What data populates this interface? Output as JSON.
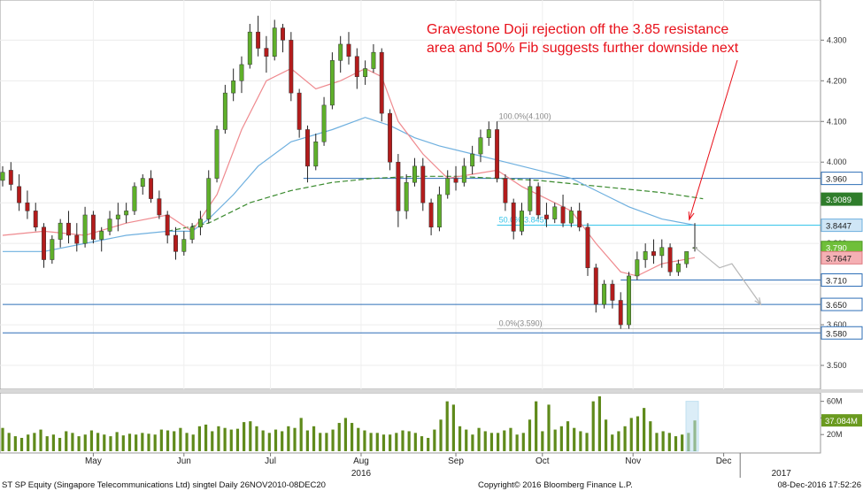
{
  "chart_data": {
    "type": "candlestick",
    "title": "",
    "annotation": [
      "Gravestone Doji rejection off the 3.85 resistance",
      "area and 50% Fib suggests further downside next"
    ],
    "y_axis": {
      "range": [
        3.45,
        4.39
      ],
      "ticks": [
        "3.500",
        "3.600",
        "3.700",
        "3.800",
        "3.900",
        "4.000",
        "4.100",
        "4.200",
        "4.300"
      ]
    },
    "volume_axis": {
      "range": [
        0,
        66
      ],
      "ticks": [
        "20M",
        "40M",
        "60M"
      ],
      "last_label": "37.084M"
    },
    "x_axis": {
      "months": [
        {
          "label": "May",
          "day": 22
        },
        {
          "label": "Jun",
          "day": 44
        },
        {
          "label": "Jul",
          "day": 65
        },
        {
          "label": "Aug",
          "day": 87
        },
        {
          "label": "Sep",
          "day": 110
        },
        {
          "label": "Oct",
          "day": 131
        },
        {
          "label": "Nov",
          "day": 153
        },
        {
          "label": "Dec",
          "day": 175
        }
      ],
      "years": [
        {
          "label": "2016",
          "day": 87
        },
        {
          "label": "2017",
          "day": 189
        }
      ],
      "total_days": 197
    },
    "horizontal_levels": [
      {
        "value": 3.96,
        "label": "3.960",
        "from_day": 73
      },
      {
        "value": 3.71,
        "label": "3.710",
        "from_day": 150
      },
      {
        "value": 3.65,
        "label": "3.650",
        "from_day": 0
      },
      {
        "value": 3.58,
        "label": "3.580",
        "from_day": 0
      }
    ],
    "fib_levels": [
      {
        "label": "100.0%(4.100)",
        "value": 4.1,
        "from_day": 120
      },
      {
        "label": "50.0%(3.845)",
        "value": 3.845,
        "from_day": 120
      },
      {
        "label": "0.0%(3.590)",
        "value": 3.59,
        "from_day": 120
      }
    ],
    "badges": [
      {
        "value": 3.96,
        "label": "3.960",
        "style": "level"
      },
      {
        "value": 3.9089,
        "label": "3.9089",
        "style": "ma200"
      },
      {
        "value": 3.8447,
        "label": "3.8447",
        "style": "ma50"
      },
      {
        "value": 3.79,
        "label": "3.790",
        "style": "last"
      },
      {
        "value": 3.7647,
        "label": "3.7647",
        "style": "ma20"
      },
      {
        "value": 3.71,
        "label": "3.710",
        "style": "level"
      },
      {
        "value": 3.65,
        "label": "3.650",
        "style": "level"
      },
      {
        "value": 3.58,
        "label": "3.580",
        "style": "level"
      }
    ],
    "colors": {
      "up": "#5fb02a",
      "down": "#b31c1c",
      "wick": "#222222",
      "ma20": "#ef8a8f",
      "ma50": "#6fb0df",
      "ma200": "#3a8a2e",
      "level": "#2f6fb7",
      "fib": "#bfbfbf",
      "fib50": "#38c5ea",
      "volume": "#5f8a1b",
      "annotation": "#e8101a",
      "projection": "#b8b8b8"
    },
    "series": [
      {
        "day": 0,
        "open": 3.955,
        "high": 3.99,
        "low": 3.94,
        "close": 3.975
      },
      {
        "day": 2,
        "open": 3.98,
        "high": 4.0,
        "low": 3.93,
        "close": 3.945
      },
      {
        "day": 4,
        "open": 3.94,
        "high": 3.97,
        "low": 3.88,
        "close": 3.9
      },
      {
        "day": 6,
        "open": 3.9,
        "high": 3.93,
        "low": 3.86,
        "close": 3.88
      },
      {
        "day": 8,
        "open": 3.88,
        "high": 3.9,
        "low": 3.83,
        "close": 3.84
      },
      {
        "day": 10,
        "open": 3.84,
        "high": 3.85,
        "low": 3.74,
        "close": 3.76
      },
      {
        "day": 12,
        "open": 3.76,
        "high": 3.82,
        "low": 3.75,
        "close": 3.81
      },
      {
        "day": 14,
        "open": 3.81,
        "high": 3.86,
        "low": 3.79,
        "close": 3.85
      },
      {
        "day": 16,
        "open": 3.85,
        "high": 3.88,
        "low": 3.8,
        "close": 3.82
      },
      {
        "day": 18,
        "open": 3.82,
        "high": 3.85,
        "low": 3.78,
        "close": 3.8
      },
      {
        "day": 20,
        "open": 3.8,
        "high": 3.89,
        "low": 3.79,
        "close": 3.87
      },
      {
        "day": 22,
        "open": 3.87,
        "high": 3.88,
        "low": 3.8,
        "close": 3.81
      },
      {
        "day": 24,
        "open": 3.81,
        "high": 3.84,
        "low": 3.78,
        "close": 3.83
      },
      {
        "day": 26,
        "open": 3.83,
        "high": 3.88,
        "low": 3.82,
        "close": 3.86
      },
      {
        "day": 28,
        "open": 3.86,
        "high": 3.9,
        "low": 3.83,
        "close": 3.87
      },
      {
        "day": 30,
        "open": 3.87,
        "high": 3.9,
        "low": 3.85,
        "close": 3.88
      },
      {
        "day": 32,
        "open": 3.88,
        "high": 3.95,
        "low": 3.87,
        "close": 3.94
      },
      {
        "day": 34,
        "open": 3.94,
        "high": 3.97,
        "low": 3.92,
        "close": 3.96
      },
      {
        "day": 36,
        "open": 3.96,
        "high": 3.98,
        "low": 3.9,
        "close": 3.91
      },
      {
        "day": 38,
        "open": 3.91,
        "high": 3.93,
        "low": 3.86,
        "close": 3.87
      },
      {
        "day": 40,
        "open": 3.87,
        "high": 3.88,
        "low": 3.8,
        "close": 3.82
      },
      {
        "day": 42,
        "open": 3.82,
        "high": 3.84,
        "low": 3.76,
        "close": 3.78
      },
      {
        "day": 44,
        "open": 3.78,
        "high": 3.83,
        "low": 3.77,
        "close": 3.81
      },
      {
        "day": 46,
        "open": 3.81,
        "high": 3.85,
        "low": 3.8,
        "close": 3.84
      },
      {
        "day": 48,
        "open": 3.84,
        "high": 3.88,
        "low": 3.82,
        "close": 3.86
      },
      {
        "day": 50,
        "open": 3.86,
        "high": 3.98,
        "low": 3.85,
        "close": 3.96
      },
      {
        "day": 52,
        "open": 3.96,
        "high": 4.09,
        "low": 3.95,
        "close": 4.08
      },
      {
        "day": 54,
        "open": 4.08,
        "high": 4.19,
        "low": 4.07,
        "close": 4.17
      },
      {
        "day": 56,
        "open": 4.17,
        "high": 4.23,
        "low": 4.15,
        "close": 4.2
      },
      {
        "day": 58,
        "open": 4.2,
        "high": 4.26,
        "low": 4.17,
        "close": 4.24
      },
      {
        "day": 60,
        "open": 4.24,
        "high": 4.34,
        "low": 4.23,
        "close": 4.32
      },
      {
        "day": 62,
        "open": 4.32,
        "high": 4.36,
        "low": 4.26,
        "close": 4.28
      },
      {
        "day": 64,
        "open": 4.28,
        "high": 4.31,
        "low": 4.22,
        "close": 4.26
      },
      {
        "day": 66,
        "open": 4.26,
        "high": 4.35,
        "low": 4.25,
        "close": 4.33
      },
      {
        "day": 68,
        "open": 4.33,
        "high": 4.34,
        "low": 4.27,
        "close": 4.3
      },
      {
        "day": 70,
        "open": 4.3,
        "high": 4.32,
        "low": 4.15,
        "close": 4.17
      },
      {
        "day": 72,
        "open": 4.17,
        "high": 4.18,
        "low": 4.06,
        "close": 4.08
      },
      {
        "day": 74,
        "open": 4.08,
        "high": 4.09,
        "low": 3.95,
        "close": 3.99
      },
      {
        "day": 76,
        "open": 3.99,
        "high": 4.07,
        "low": 3.98,
        "close": 4.05
      },
      {
        "day": 78,
        "open": 4.05,
        "high": 4.16,
        "low": 4.04,
        "close": 4.14
      },
      {
        "day": 80,
        "open": 4.14,
        "high": 4.27,
        "low": 4.13,
        "close": 4.25
      },
      {
        "day": 82,
        "open": 4.25,
        "high": 4.31,
        "low": 4.22,
        "close": 4.29
      },
      {
        "day": 84,
        "open": 4.29,
        "high": 4.32,
        "low": 4.24,
        "close": 4.26
      },
      {
        "day": 86,
        "open": 4.26,
        "high": 4.28,
        "low": 4.18,
        "close": 4.21
      },
      {
        "day": 88,
        "open": 4.21,
        "high": 4.25,
        "low": 4.19,
        "close": 4.23
      },
      {
        "day": 90,
        "open": 4.23,
        "high": 4.29,
        "low": 4.22,
        "close": 4.27
      },
      {
        "day": 92,
        "open": 4.27,
        "high": 4.28,
        "low": 4.1,
        "close": 4.12
      },
      {
        "day": 94,
        "open": 4.12,
        "high": 4.13,
        "low": 3.98,
        "close": 4.0
      },
      {
        "day": 96,
        "open": 4.0,
        "high": 4.02,
        "low": 3.84,
        "close": 3.88
      },
      {
        "day": 98,
        "open": 3.88,
        "high": 3.97,
        "low": 3.86,
        "close": 3.95
      },
      {
        "day": 100,
        "open": 3.95,
        "high": 4.01,
        "low": 3.94,
        "close": 3.99
      },
      {
        "day": 102,
        "open": 3.99,
        "high": 4.01,
        "low": 3.88,
        "close": 3.9
      },
      {
        "day": 104,
        "open": 3.9,
        "high": 3.91,
        "low": 3.82,
        "close": 3.84
      },
      {
        "day": 106,
        "open": 3.84,
        "high": 3.94,
        "low": 3.83,
        "close": 3.92
      },
      {
        "day": 108,
        "open": 3.92,
        "high": 3.98,
        "low": 3.91,
        "close": 3.96
      },
      {
        "day": 110,
        "open": 3.96,
        "high": 3.99,
        "low": 3.93,
        "close": 3.95
      },
      {
        "day": 112,
        "open": 3.95,
        "high": 4.01,
        "low": 3.94,
        "close": 3.99
      },
      {
        "day": 114,
        "open": 3.99,
        "high": 4.04,
        "low": 3.97,
        "close": 4.02
      },
      {
        "day": 116,
        "open": 4.02,
        "high": 4.08,
        "low": 4.0,
        "close": 4.06
      },
      {
        "day": 118,
        "open": 4.06,
        "high": 4.1,
        "low": 4.04,
        "close": 4.08
      },
      {
        "day": 120,
        "open": 4.08,
        "high": 4.1,
        "low": 3.95,
        "close": 3.96
      },
      {
        "day": 122,
        "open": 3.96,
        "high": 3.97,
        "low": 3.88,
        "close": 3.9
      },
      {
        "day": 124,
        "open": 3.9,
        "high": 3.91,
        "low": 3.81,
        "close": 3.83
      },
      {
        "day": 126,
        "open": 3.83,
        "high": 3.9,
        "low": 3.82,
        "close": 3.88
      },
      {
        "day": 128,
        "open": 3.88,
        "high": 3.96,
        "low": 3.87,
        "close": 3.94
      },
      {
        "day": 130,
        "open": 3.94,
        "high": 3.95,
        "low": 3.86,
        "close": 3.87
      },
      {
        "day": 132,
        "open": 3.87,
        "high": 3.9,
        "low": 3.84,
        "close": 3.86
      },
      {
        "day": 134,
        "open": 3.86,
        "high": 3.9,
        "low": 3.85,
        "close": 3.89
      },
      {
        "day": 136,
        "open": 3.89,
        "high": 3.92,
        "low": 3.84,
        "close": 3.85
      },
      {
        "day": 138,
        "open": 3.85,
        "high": 3.89,
        "low": 3.84,
        "close": 3.88
      },
      {
        "day": 140,
        "open": 3.88,
        "high": 3.9,
        "low": 3.83,
        "close": 3.84
      },
      {
        "day": 142,
        "open": 3.84,
        "high": 3.85,
        "low": 3.72,
        "close": 3.74
      },
      {
        "day": 144,
        "open": 3.74,
        "high": 3.75,
        "low": 3.63,
        "close": 3.65
      },
      {
        "day": 146,
        "open": 3.65,
        "high": 3.71,
        "low": 3.64,
        "close": 3.7
      },
      {
        "day": 148,
        "open": 3.7,
        "high": 3.71,
        "low": 3.64,
        "close": 3.66
      },
      {
        "day": 150,
        "open": 3.66,
        "high": 3.68,
        "low": 3.59,
        "close": 3.6
      },
      {
        "day": 152,
        "open": 3.6,
        "high": 3.73,
        "low": 3.59,
        "close": 3.72
      },
      {
        "day": 154,
        "open": 3.72,
        "high": 3.78,
        "low": 3.71,
        "close": 3.76
      },
      {
        "day": 156,
        "open": 3.76,
        "high": 3.8,
        "low": 3.74,
        "close": 3.78
      },
      {
        "day": 158,
        "open": 3.78,
        "high": 3.81,
        "low": 3.75,
        "close": 3.77
      },
      {
        "day": 160,
        "open": 3.77,
        "high": 3.81,
        "low": 3.74,
        "close": 3.79
      },
      {
        "day": 162,
        "open": 3.79,
        "high": 3.8,
        "low": 3.72,
        "close": 3.73
      },
      {
        "day": 164,
        "open": 3.73,
        "high": 3.76,
        "low": 3.72,
        "close": 3.75
      },
      {
        "day": 166,
        "open": 3.75,
        "high": 3.78,
        "low": 3.74,
        "close": 3.78
      },
      {
        "day": 168,
        "open": 3.79,
        "high": 3.85,
        "low": 3.78,
        "close": 3.79
      }
    ],
    "ma20": [
      [
        0,
        3.82
      ],
      [
        10,
        3.83
      ],
      [
        20,
        3.82
      ],
      [
        30,
        3.85
      ],
      [
        40,
        3.87
      ],
      [
        46,
        3.83
      ],
      [
        52,
        3.92
      ],
      [
        58,
        4.08
      ],
      [
        64,
        4.2
      ],
      [
        70,
        4.23
      ],
      [
        76,
        4.18
      ],
      [
        82,
        4.2
      ],
      [
        88,
        4.23
      ],
      [
        92,
        4.21
      ],
      [
        96,
        4.1
      ],
      [
        102,
        4.02
      ],
      [
        108,
        3.96
      ],
      [
        114,
        3.97
      ],
      [
        120,
        3.98
      ],
      [
        126,
        3.94
      ],
      [
        132,
        3.91
      ],
      [
        138,
        3.88
      ],
      [
        144,
        3.8
      ],
      [
        150,
        3.73
      ],
      [
        154,
        3.72
      ],
      [
        160,
        3.75
      ],
      [
        168,
        3.765
      ]
    ],
    "ma50": [
      [
        0,
        3.78
      ],
      [
        10,
        3.78
      ],
      [
        20,
        3.8
      ],
      [
        30,
        3.82
      ],
      [
        40,
        3.83
      ],
      [
        46,
        3.83
      ],
      [
        50,
        3.86
      ],
      [
        56,
        3.92
      ],
      [
        62,
        3.99
      ],
      [
        70,
        4.05
      ],
      [
        80,
        4.08
      ],
      [
        88,
        4.11
      ],
      [
        94,
        4.09
      ],
      [
        100,
        4.06
      ],
      [
        106,
        4.04
      ],
      [
        114,
        4.02
      ],
      [
        122,
        4.0
      ],
      [
        130,
        3.98
      ],
      [
        138,
        3.96
      ],
      [
        146,
        3.92
      ],
      [
        152,
        3.89
      ],
      [
        160,
        3.86
      ],
      [
        168,
        3.845
      ]
    ],
    "ma200": [
      [
        40,
        3.83
      ],
      [
        50,
        3.85
      ],
      [
        60,
        3.9
      ],
      [
        70,
        3.93
      ],
      [
        80,
        3.95
      ],
      [
        90,
        3.96
      ],
      [
        100,
        3.965
      ],
      [
        110,
        3.965
      ],
      [
        120,
        3.96
      ],
      [
        130,
        3.955
      ],
      [
        140,
        3.945
      ],
      [
        150,
        3.935
      ],
      [
        160,
        3.925
      ],
      [
        170,
        3.91
      ]
    ],
    "projection": [
      [
        168,
        3.79
      ],
      [
        174,
        3.74
      ],
      [
        177,
        3.75
      ],
      [
        184,
        3.65
      ]
    ],
    "volume": [
      28,
      22,
      18,
      16,
      20,
      22,
      26,
      18,
      20,
      16,
      24,
      22,
      18,
      20,
      25,
      22,
      20,
      18,
      23,
      19,
      21,
      20,
      22,
      21,
      20,
      26,
      25,
      24,
      28,
      22,
      20,
      30,
      32,
      24,
      30,
      28,
      26,
      27,
      35,
      36,
      30,
      25,
      22,
      26,
      24,
      30,
      28,
      40,
      25,
      30,
      22,
      22,
      26,
      34,
      40,
      34,
      28,
      25,
      22,
      22,
      20,
      20,
      22,
      25,
      24,
      22,
      18,
      16,
      26,
      38,
      60,
      56,
      30,
      26,
      20,
      28,
      24,
      22,
      22,
      25,
      28,
      20,
      22,
      38,
      60,
      24,
      56,
      26,
      30,
      36,
      28,
      24,
      22,
      60,
      66,
      38,
      20,
      24,
      30,
      40,
      42,
      52,
      36,
      22,
      24,
      22,
      18,
      20,
      22,
      37
    ],
    "footer": {
      "left": "ST SP Equity (Singapore Telecommunications Ltd) singtel  Daily 26NOV2010-08DEC20",
      "center": "Copyright© 2016 Bloomberg Finance L.P.",
      "right": "08-Dec-2016 17:52:26"
    }
  }
}
